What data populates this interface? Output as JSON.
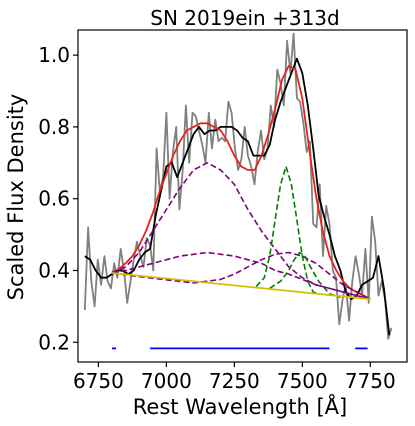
{
  "chart_data": {
    "type": "line",
    "title": "SN 2019ein  +313d",
    "xlabel": "Rest Wavelength [Å]",
    "ylabel": "Scaled Flux Density",
    "xlim": [
      6675,
      7885
    ],
    "ylim": [
      0.145,
      1.07
    ],
    "xticks": [
      6750,
      7000,
      7250,
      7500,
      7750
    ],
    "yticks": [
      0.2,
      0.4,
      0.6,
      0.8,
      1.0
    ],
    "xtick_labels": [
      "6750",
      "7000",
      "7250",
      "7500",
      "7750"
    ],
    "ytick_labels": [
      "0.2",
      "0.4",
      "0.6",
      "0.8",
      "1.0"
    ],
    "grid": false,
    "series": [
      {
        "color": "#808080",
        "style": "solid",
        "x": [
          6700,
          6712,
          6724,
          6736,
          6748,
          6760,
          6772,
          6784,
          6796,
          6808,
          6820,
          6832,
          6844,
          6856,
          6868,
          6880,
          6892,
          6904,
          6916,
          6928,
          6940,
          6952,
          6964,
          6976,
          6988,
          7000,
          7012,
          7024,
          7036,
          7048,
          7060,
          7072,
          7084,
          7096,
          7108,
          7120,
          7132,
          7144,
          7156,
          7168,
          7180,
          7192,
          7204,
          7216,
          7228,
          7240,
          7252,
          7264,
          7276,
          7288,
          7300,
          7312,
          7324,
          7336,
          7348,
          7360,
          7372,
          7384,
          7396,
          7408,
          7420,
          7432,
          7444,
          7456,
          7468,
          7480,
          7492,
          7504,
          7516,
          7528,
          7540,
          7552,
          7564,
          7576,
          7588,
          7600,
          7612,
          7624,
          7636,
          7648,
          7660,
          7672,
          7684,
          7696,
          7708,
          7720,
          7732,
          7744,
          7756,
          7768,
          7780,
          7792,
          7804,
          7816,
          7828
        ],
        "y": [
          0.29,
          0.52,
          0.37,
          0.3,
          0.43,
          0.36,
          0.44,
          0.37,
          0.35,
          0.42,
          0.38,
          0.46,
          0.4,
          0.31,
          0.37,
          0.43,
          0.48,
          0.44,
          0.41,
          0.49,
          0.47,
          0.4,
          0.74,
          0.62,
          0.66,
          0.84,
          0.6,
          0.73,
          0.8,
          0.57,
          0.68,
          0.86,
          0.7,
          0.84,
          0.83,
          0.79,
          0.75,
          0.7,
          0.84,
          0.74,
          0.82,
          0.76,
          0.77,
          0.76,
          0.87,
          0.84,
          0.74,
          0.68,
          0.71,
          0.8,
          0.72,
          0.69,
          0.64,
          0.73,
          0.79,
          0.71,
          0.74,
          0.86,
          0.8,
          0.96,
          0.92,
          0.86,
          1.04,
          0.95,
          1.06,
          0.88,
          0.87,
          0.81,
          0.73,
          0.76,
          0.53,
          0.52,
          0.64,
          0.44,
          0.58,
          0.53,
          0.4,
          0.38,
          0.25,
          0.32,
          0.36,
          0.26,
          0.37,
          0.44,
          0.39,
          0.33,
          0.46,
          0.31,
          0.55,
          0.48,
          0.33,
          0.37,
          0.32,
          0.21,
          0.24
        ]
      },
      {
        "color": "#000000",
        "style": "solid",
        "x": [
          6700,
          6720,
          6740,
          6760,
          6780,
          6800,
          6820,
          6840,
          6860,
          6880,
          6900,
          6920,
          6940,
          6960,
          6980,
          7000,
          7020,
          7040,
          7060,
          7080,
          7100,
          7120,
          7140,
          7160,
          7180,
          7200,
          7220,
          7240,
          7260,
          7280,
          7300,
          7320,
          7340,
          7360,
          7380,
          7400,
          7420,
          7440,
          7460,
          7480,
          7500,
          7520,
          7540,
          7560,
          7580,
          7600,
          7620,
          7640,
          7660,
          7680,
          7700,
          7720,
          7740,
          7760,
          7780,
          7800,
          7820
        ],
        "y": [
          0.44,
          0.43,
          0.4,
          0.38,
          0.38,
          0.39,
          0.4,
          0.4,
          0.39,
          0.4,
          0.43,
          0.45,
          0.46,
          0.55,
          0.62,
          0.69,
          0.7,
          0.66,
          0.7,
          0.74,
          0.78,
          0.8,
          0.78,
          0.79,
          0.79,
          0.8,
          0.8,
          0.8,
          0.79,
          0.77,
          0.76,
          0.72,
          0.72,
          0.72,
          0.75,
          0.82,
          0.87,
          0.91,
          0.95,
          0.99,
          0.95,
          0.86,
          0.74,
          0.61,
          0.55,
          0.5,
          0.44,
          0.4,
          0.34,
          0.32,
          0.33,
          0.36,
          0.37,
          0.38,
          0.44,
          0.35,
          0.22
        ]
      },
      {
        "color": "#e8221c",
        "style": "solid",
        "x": [
          6800,
          6825,
          6850,
          6875,
          6900,
          6925,
          6950,
          6975,
          7000,
          7025,
          7050,
          7075,
          7100,
          7125,
          7150,
          7175,
          7200,
          7225,
          7250,
          7275,
          7300,
          7325,
          7350,
          7375,
          7400,
          7425,
          7450,
          7475,
          7500,
          7525,
          7550,
          7575,
          7600,
          7625,
          7650,
          7675,
          7700,
          7725,
          7750
        ],
        "y": [
          0.395,
          0.404,
          0.42,
          0.44,
          0.47,
          0.51,
          0.56,
          0.62,
          0.67,
          0.72,
          0.76,
          0.79,
          0.8,
          0.81,
          0.81,
          0.8,
          0.79,
          0.76,
          0.72,
          0.69,
          0.68,
          0.68,
          0.72,
          0.78,
          0.85,
          0.93,
          0.97,
          0.96,
          0.88,
          0.74,
          0.61,
          0.51,
          0.44,
          0.4,
          0.37,
          0.35,
          0.34,
          0.33,
          0.32
        ]
      },
      {
        "color": "#800080",
        "style": "dashed",
        "x": [
          6800,
          6850,
          6900,
          6950,
          7000,
          7050,
          7100,
          7150,
          7200,
          7250,
          7300,
          7350,
          7400,
          7450,
          7500,
          7550,
          7600,
          7650,
          7700,
          7750
        ],
        "y": [
          0.393,
          0.41,
          0.45,
          0.51,
          0.57,
          0.63,
          0.68,
          0.7,
          0.68,
          0.64,
          0.57,
          0.51,
          0.46,
          0.41,
          0.38,
          0.36,
          0.35,
          0.34,
          0.33,
          0.32
        ]
      },
      {
        "color": "#800080",
        "style": "dashed",
        "x": [
          6800,
          6850,
          6900,
          6950,
          7000,
          7050,
          7100,
          7150,
          7200,
          7250,
          7300,
          7350,
          7400,
          7450,
          7500,
          7550,
          7600,
          7650,
          7700,
          7750
        ],
        "y": [
          0.393,
          0.4,
          0.41,
          0.42,
          0.43,
          0.44,
          0.445,
          0.45,
          0.445,
          0.44,
          0.43,
          0.42,
          0.4,
          0.39,
          0.375,
          0.36,
          0.35,
          0.34,
          0.33,
          0.32
        ]
      },
      {
        "color": "#800080",
        "style": "dashed",
        "x": [
          6800,
          6900,
          7000,
          7100,
          7200,
          7250,
          7300,
          7350,
          7400,
          7450,
          7500,
          7550,
          7600,
          7650,
          7700,
          7750
        ],
        "y": [
          0.393,
          0.383,
          0.374,
          0.365,
          0.375,
          0.39,
          0.41,
          0.43,
          0.445,
          0.45,
          0.44,
          0.42,
          0.39,
          0.36,
          0.34,
          0.32
        ]
      },
      {
        "color": "#008000",
        "style": "dashed",
        "x": [
          7330,
          7360,
          7380,
          7400,
          7420,
          7440,
          7460,
          7480,
          7500,
          7520,
          7540,
          7560
        ],
        "y": [
          0.355,
          0.38,
          0.44,
          0.54,
          0.64,
          0.69,
          0.64,
          0.54,
          0.44,
          0.37,
          0.34,
          0.335
        ]
      },
      {
        "color": "#008000",
        "style": "dashed",
        "x": [
          7380,
          7420,
          7450,
          7470,
          7490,
          7510,
          7530,
          7560,
          7600,
          7640
        ],
        "y": [
          0.35,
          0.37,
          0.4,
          0.43,
          0.45,
          0.44,
          0.41,
          0.37,
          0.335,
          0.325
        ]
      },
      {
        "color": "#d4c000",
        "style": "solid",
        "x": [
          6800,
          7750
        ],
        "y": [
          0.393,
          0.32
        ]
      },
      {
        "color": "#0000ff",
        "style": "solid",
        "x": [
          6800,
          6815
        ],
        "y": [
          0.183,
          0.183
        ]
      },
      {
        "color": "#0000ff",
        "style": "solid",
        "x": [
          6940,
          7600
        ],
        "y": [
          0.183,
          0.183
        ]
      },
      {
        "color": "#0000ff",
        "style": "solid",
        "x": [
          7695,
          7740
        ],
        "y": [
          0.183,
          0.183
        ]
      }
    ]
  }
}
